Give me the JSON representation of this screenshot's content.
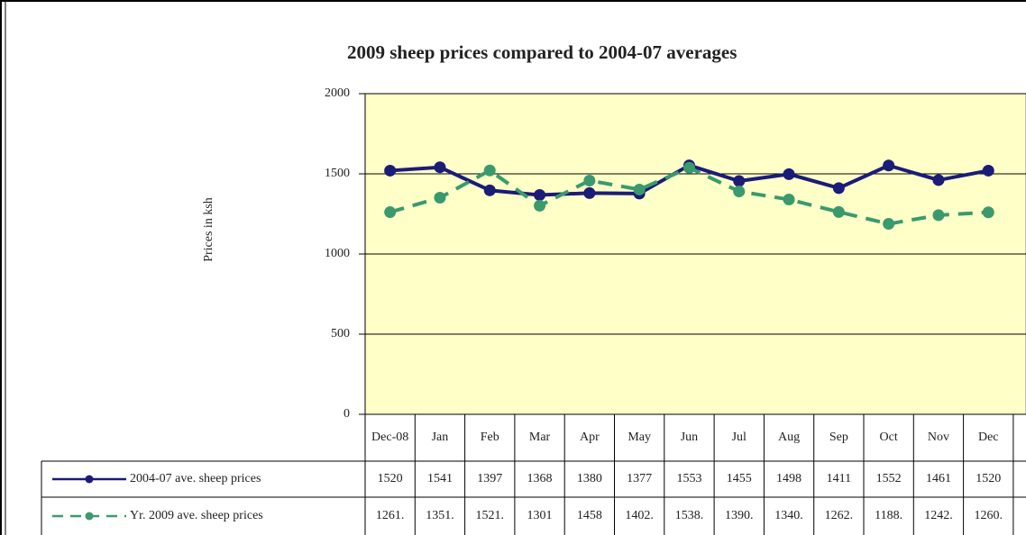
{
  "chart_data": {
    "type": "line",
    "title": "2009 sheep prices compared to 2004-07 averages",
    "y_label": "Prices in ksh",
    "categories": [
      "Dec-08",
      "Jan",
      "Feb",
      "Mar",
      "Apr",
      "May",
      "Jun",
      "Jul",
      "Aug",
      "Sep",
      "Oct",
      "Nov",
      "Dec"
    ],
    "series": [
      {
        "name": "2004-07 ave. sheep prices",
        "color": "#1b1b78",
        "dash": false,
        "values": [
          1520,
          1541,
          1397,
          1368,
          1380,
          1377,
          1553,
          1455,
          1498,
          1411,
          1552,
          1461,
          1520
        ]
      },
      {
        "name": "Yr. 2009 ave. sheep prices",
        "color": "#3a9a6e",
        "dash": true,
        "values": [
          1261,
          1351,
          1521,
          1301,
          1458,
          1402,
          1538,
          1390,
          1340,
          1262,
          1188,
          1242,
          1260
        ],
        "value_labels": [
          "1261.",
          "1351.",
          "1521.",
          "1301",
          "1458",
          "1402.",
          "1538.",
          "1390.",
          "1340.",
          "1262.",
          "1188.",
          "1242.",
          "1260."
        ]
      }
    ],
    "ylim": [
      0,
      2000
    ],
    "yticks": [
      0,
      500,
      1000,
      1500,
      2000
    ],
    "grid": true,
    "plot_background": "#ffffc8"
  }
}
